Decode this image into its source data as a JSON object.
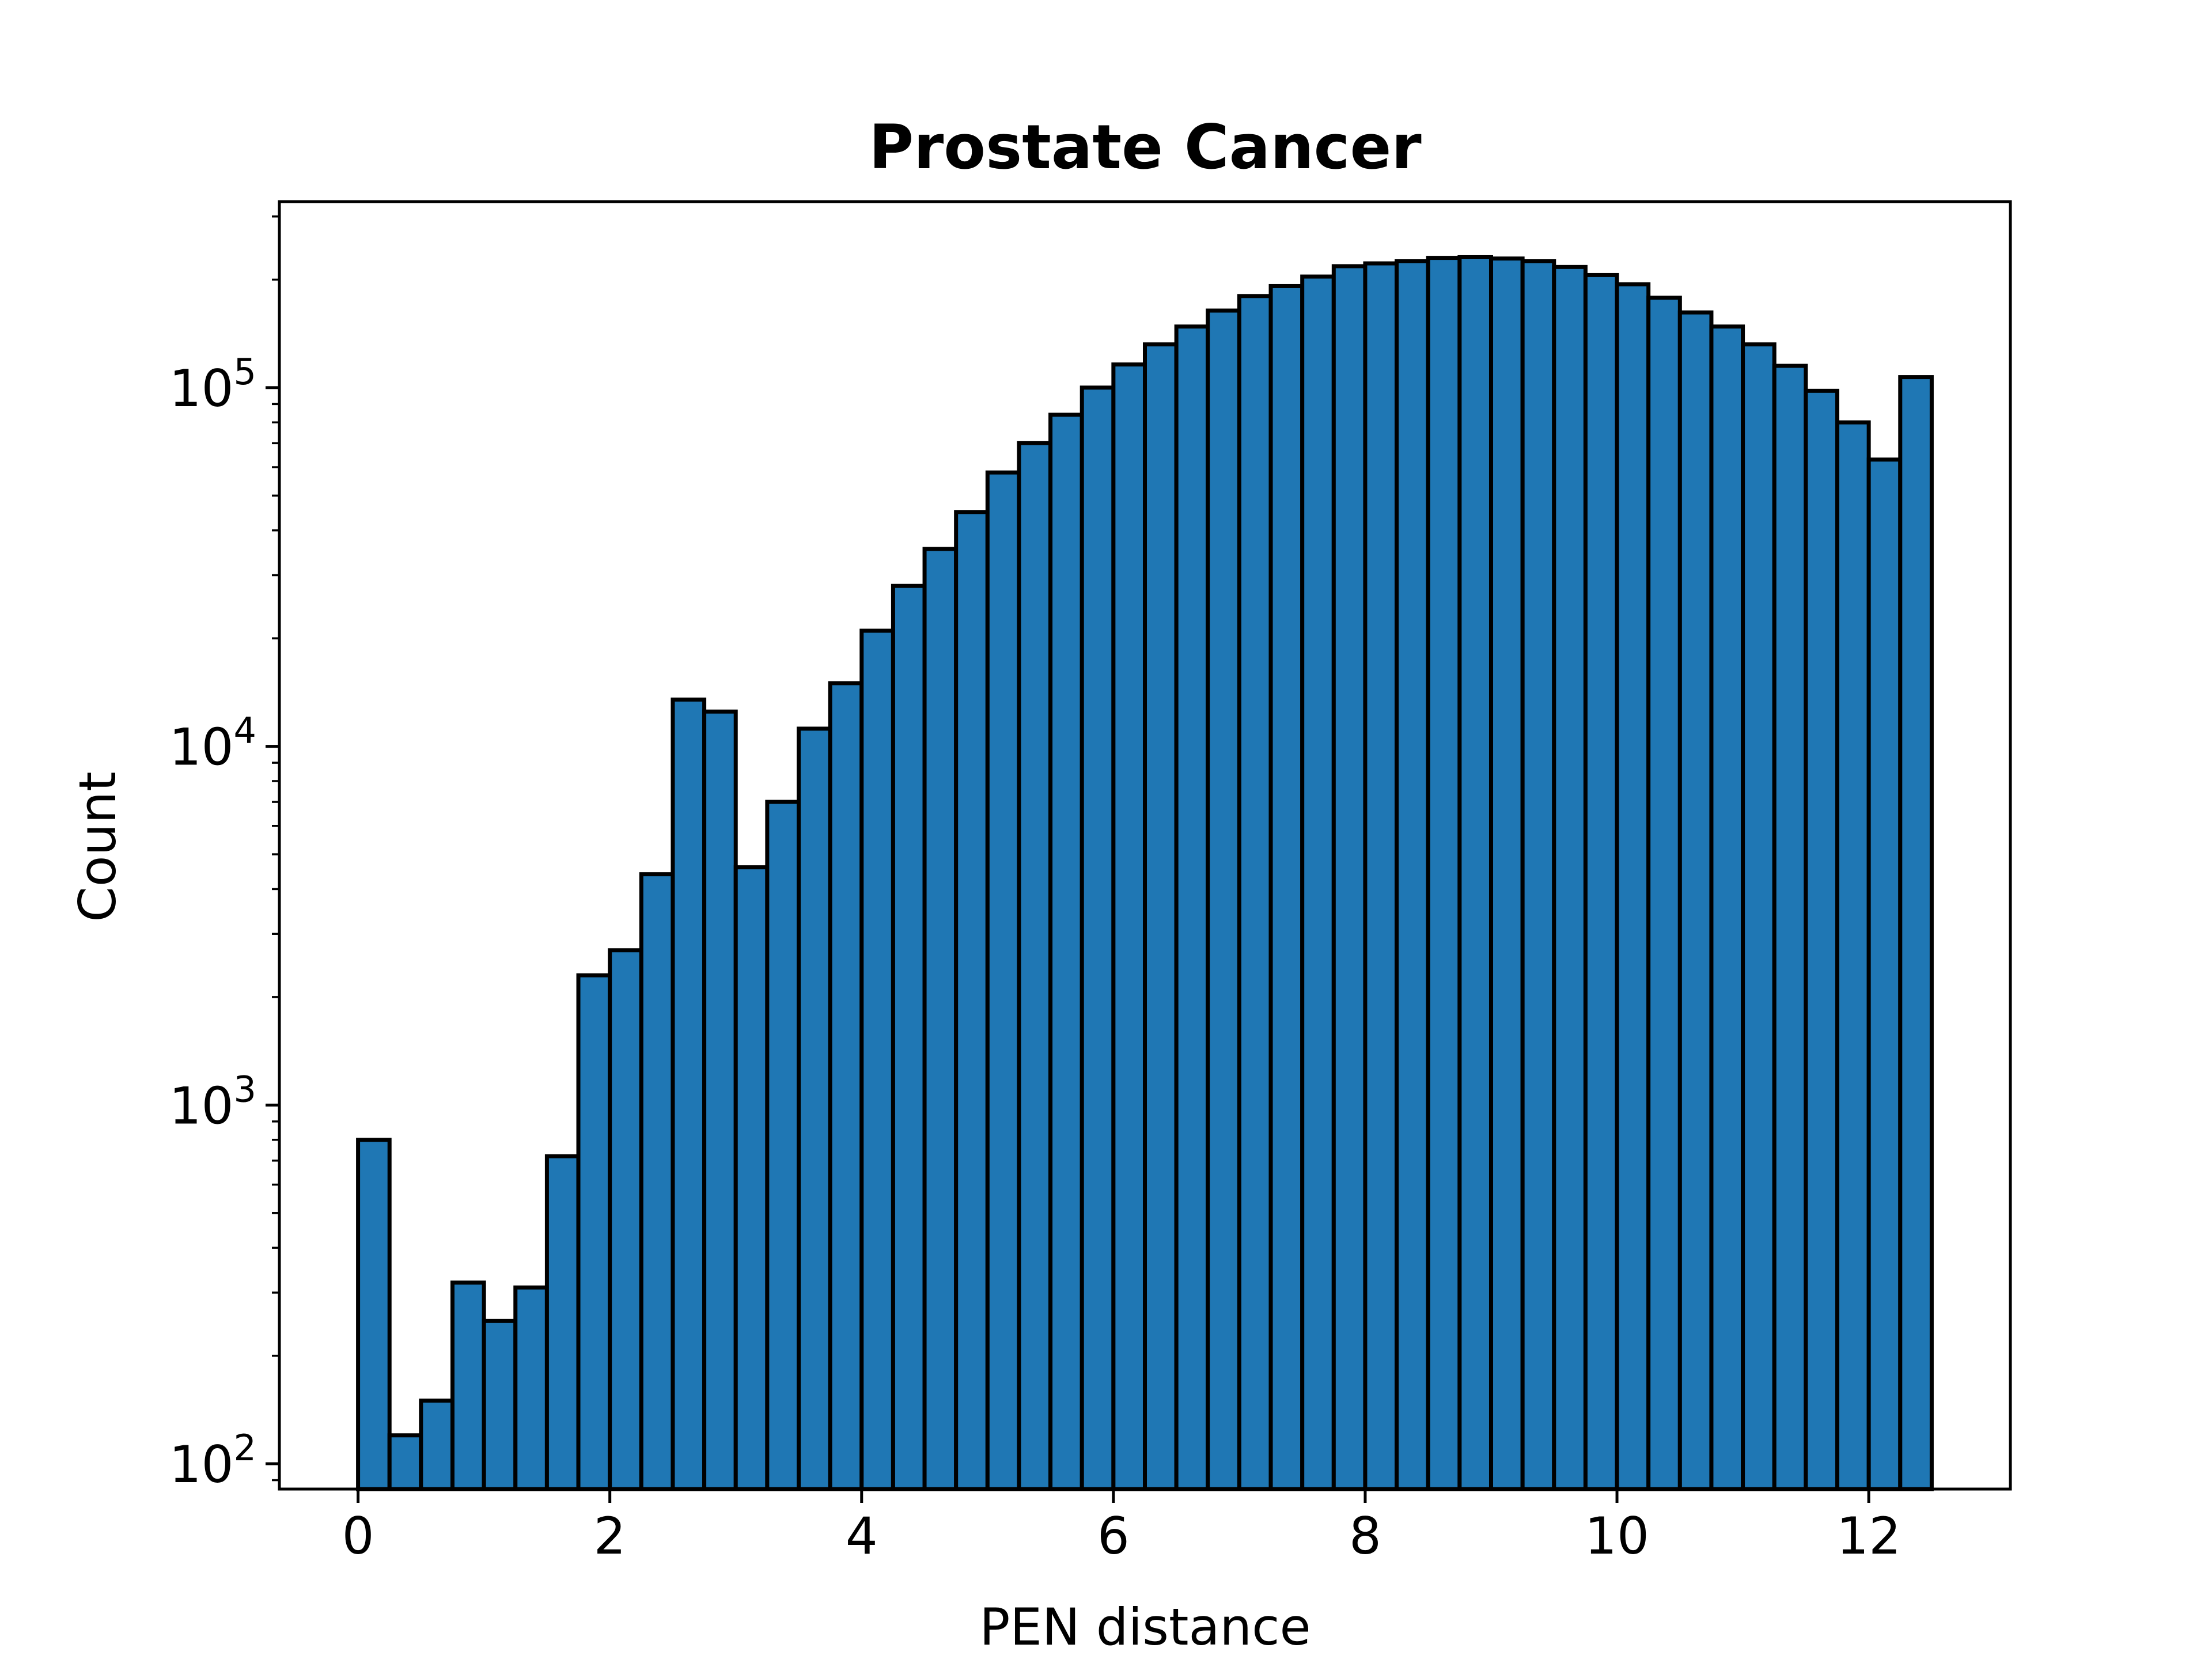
{
  "chart_data": {
    "type": "bar",
    "title": "Prostate Cancer",
    "xlabel": "PEN distance",
    "ylabel": "Count",
    "yscale": "log",
    "xlim": [
      -0.625,
      13.125
    ],
    "ylim": [
      85,
      330000
    ],
    "xticks": [
      0,
      2,
      4,
      6,
      8,
      10,
      12
    ],
    "yticks": [
      {
        "base": "10",
        "exp": "2",
        "value": 100
      },
      {
        "base": "10",
        "exp": "3",
        "value": 1000
      },
      {
        "base": "10",
        "exp": "4",
        "value": 10000
      },
      {
        "base": "10",
        "exp": "5",
        "value": 100000
      }
    ],
    "bin_width": 0.25,
    "bin_start": 0,
    "bar_color": "#1f77b4",
    "edge_color": "#000000",
    "grid": false,
    "values": [
      800,
      120,
      150,
      320,
      250,
      310,
      720,
      2300,
      2700,
      4400,
      13500,
      12500,
      4600,
      7000,
      11200,
      15000,
      21000,
      28000,
      35500,
      45000,
      58000,
      70000,
      84000,
      100000,
      116000,
      132000,
      148000,
      164000,
      180000,
      192000,
      204000,
      218000,
      222000,
      225000,
      230000,
      231000,
      229000,
      225000,
      217000,
      206000,
      194000,
      178000,
      162000,
      148000,
      132000,
      115000,
      98000,
      80000,
      63000,
      107000
    ]
  }
}
